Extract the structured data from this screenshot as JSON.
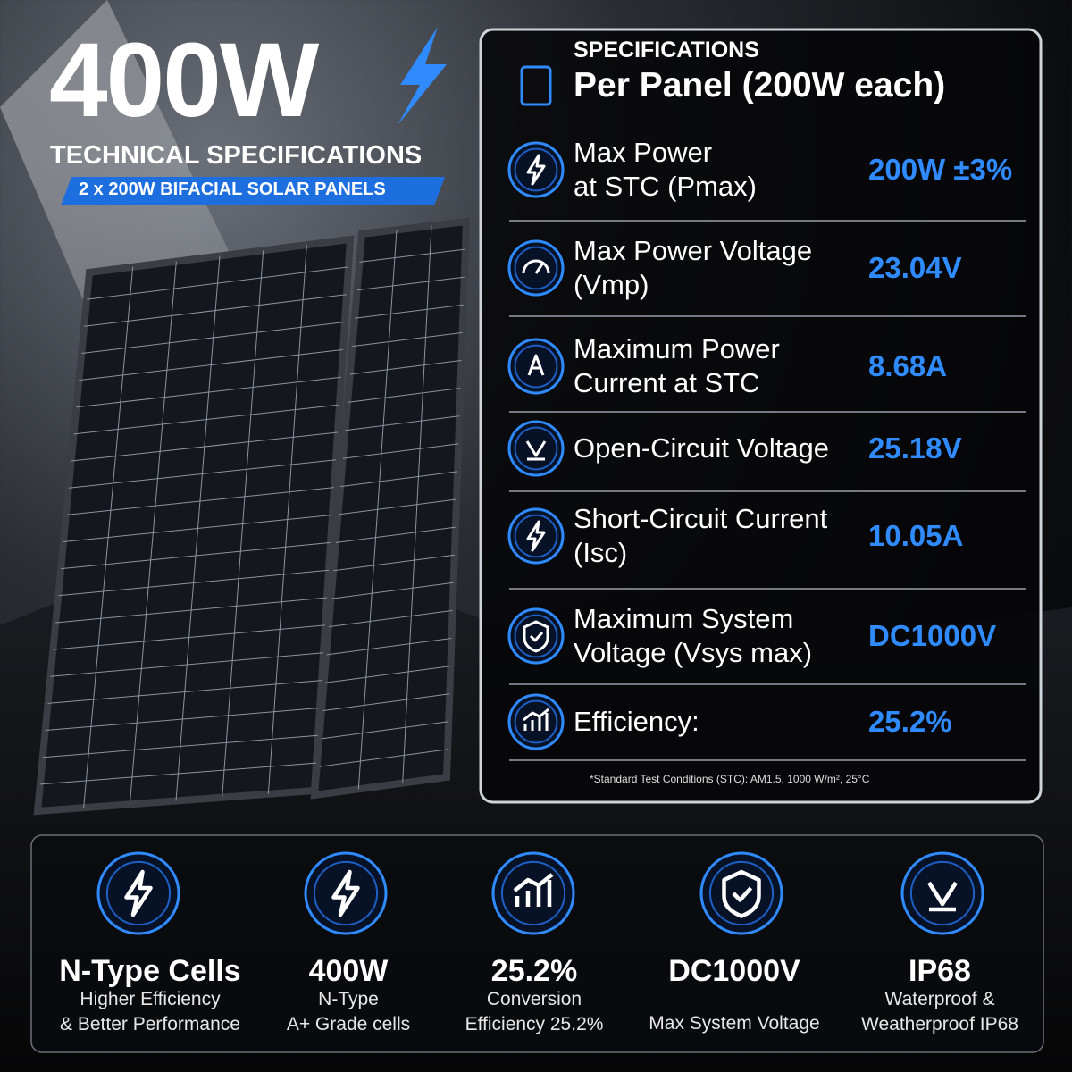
{
  "header": {
    "title": "400W",
    "subtitle": "TECHNICAL SPECIFICATIONS",
    "badge": "2 x 200W BIFACIAL SOLAR PANELS"
  },
  "specs": {
    "kicker": "SPECIFICATIONS",
    "title": "Per Panel (200W each)",
    "rows": [
      {
        "label": [
          "Max Power",
          "at STC (Pmax)"
        ],
        "value": "200W ±3%"
      },
      {
        "label": [
          "Max Power Voltage",
          "(Vmp)"
        ],
        "value": "23.04V"
      },
      {
        "label": [
          "Maximum Power",
          "Current at STC"
        ],
        "value": "8.68A"
      },
      {
        "label": [
          "Open-Circuit Voltage"
        ],
        "value": "25.18V"
      },
      {
        "label": [
          "Short-Circuit Current",
          "(Isc)"
        ],
        "value": "10.05A"
      },
      {
        "label": [
          "Maximum System",
          "Voltage (Vsys max)"
        ],
        "value": "DC1000V"
      },
      {
        "label": [
          "Efficiency:"
        ],
        "value": "25.2%"
      }
    ],
    "footnote": "*Standard Test Conditions (STC):  AM1.5, 1000 W/m², 25°C"
  },
  "features": [
    {
      "title": "N-Type Cells",
      "lines": [
        "Higher Efficiency",
        "& Better Performance"
      ]
    },
    {
      "title": "400W",
      "lines": [
        "N-Type",
        "A+ Grade cells"
      ]
    },
    {
      "title": "25.2%",
      "lines": [
        "Conversion",
        "Efficiency 25.2%"
      ]
    },
    {
      "title": "DC1000V",
      "lines": [
        "Max System Voltage"
      ]
    },
    {
      "title": "IP68",
      "lines": [
        "Waterproof &",
        "Weatherproof IP68"
      ]
    }
  ]
}
